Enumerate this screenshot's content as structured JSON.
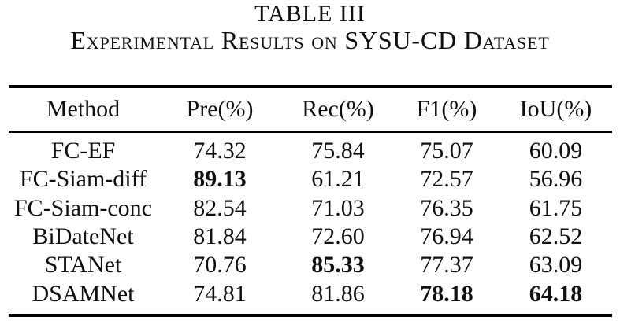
{
  "page": {
    "background": "#ffffff",
    "text_color": "#101010",
    "rule_color": "#000000"
  },
  "caption": {
    "label": "TABLE III",
    "title": "Experimental Results on SYSU-CD Dataset"
  },
  "table": {
    "columns": [
      "Method",
      "Pre(%)",
      "Rec(%)",
      "F1(%)",
      "IoU(%)"
    ],
    "rows": [
      {
        "method": "FC-EF",
        "values": [
          "74.32",
          "75.84",
          "75.07",
          "60.09"
        ],
        "bold": [
          false,
          false,
          false,
          false
        ]
      },
      {
        "method": "FC-Siam-diff",
        "values": [
          "89.13",
          "61.21",
          "72.57",
          "56.96"
        ],
        "bold": [
          true,
          false,
          false,
          false
        ]
      },
      {
        "method": "FC-Siam-conc",
        "values": [
          "82.54",
          "71.03",
          "76.35",
          "61.75"
        ],
        "bold": [
          false,
          false,
          false,
          false
        ]
      },
      {
        "method": "BiDateNet",
        "values": [
          "81.84",
          "72.60",
          "76.94",
          "62.52"
        ],
        "bold": [
          false,
          false,
          false,
          false
        ]
      },
      {
        "method": "STANet",
        "values": [
          "70.76",
          "85.33",
          "77.37",
          "63.09"
        ],
        "bold": [
          false,
          true,
          false,
          false
        ]
      },
      {
        "method": "DSAMNet",
        "values": [
          "74.81",
          "81.86",
          "78.18",
          "64.18"
        ],
        "bold": [
          false,
          false,
          true,
          true
        ]
      }
    ]
  },
  "chart_data": {
    "type": "table",
    "title": "TABLE III — Experimental Results on SYSU-CD Dataset",
    "columns": [
      "Method",
      "Pre(%)",
      "Rec(%)",
      "F1(%)",
      "IoU(%)"
    ],
    "rows": [
      [
        "FC-EF",
        74.32,
        75.84,
        75.07,
        60.09
      ],
      [
        "FC-Siam-diff",
        89.13,
        61.21,
        72.57,
        56.96
      ],
      [
        "FC-Siam-conc",
        82.54,
        71.03,
        76.35,
        61.75
      ],
      [
        "BiDateNet",
        81.84,
        72.6,
        76.94,
        62.52
      ],
      [
        "STANet",
        70.76,
        85.33,
        77.37,
        63.09
      ],
      [
        "DSAMNet",
        74.81,
        81.86,
        78.18,
        64.18
      ]
    ],
    "bold_cells_note": "best value per metric is bold: Pre=89.13 (FC-Siam-diff), Rec=85.33 (STANet), F1=78.18 (DSAMNet), IoU=64.18 (DSAMNet)"
  }
}
